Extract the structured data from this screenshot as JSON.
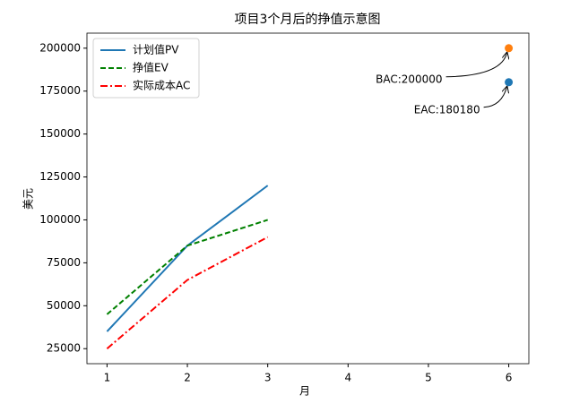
{
  "chart_data": {
    "type": "line",
    "title": "项目3个月后的挣值示意图",
    "xlabel": "月",
    "ylabel": "美元",
    "x": [
      1,
      2,
      3
    ],
    "series": [
      {
        "name": "计划值PV",
        "color": "#1f77b4",
        "dash": "solid",
        "values": [
          35000,
          85000,
          120000
        ]
      },
      {
        "name": "挣值EV",
        "color": "#008000",
        "dash": "dashed",
        "values": [
          45000,
          85000,
          100000
        ]
      },
      {
        "name": "实际成本AC",
        "color": "#ff0000",
        "dash": "dashdot",
        "values": [
          25000,
          65000,
          90000
        ]
      }
    ],
    "annotations": [
      {
        "text": "BAC:200000",
        "x": 6,
        "y": 200000,
        "color": "#ff7f0e"
      },
      {
        "text": "EAC:180180",
        "x": 6,
        "y": 180180,
        "color": "#1f77b4"
      }
    ],
    "xlim": [
      0.75,
      6.25
    ],
    "xticks": [
      1,
      2,
      3,
      4,
      5,
      6
    ],
    "ylim": [
      16250,
      208750
    ],
    "yticks": [
      25000,
      50000,
      75000,
      100000,
      125000,
      150000,
      175000,
      200000
    ],
    "legend": "upper left"
  }
}
